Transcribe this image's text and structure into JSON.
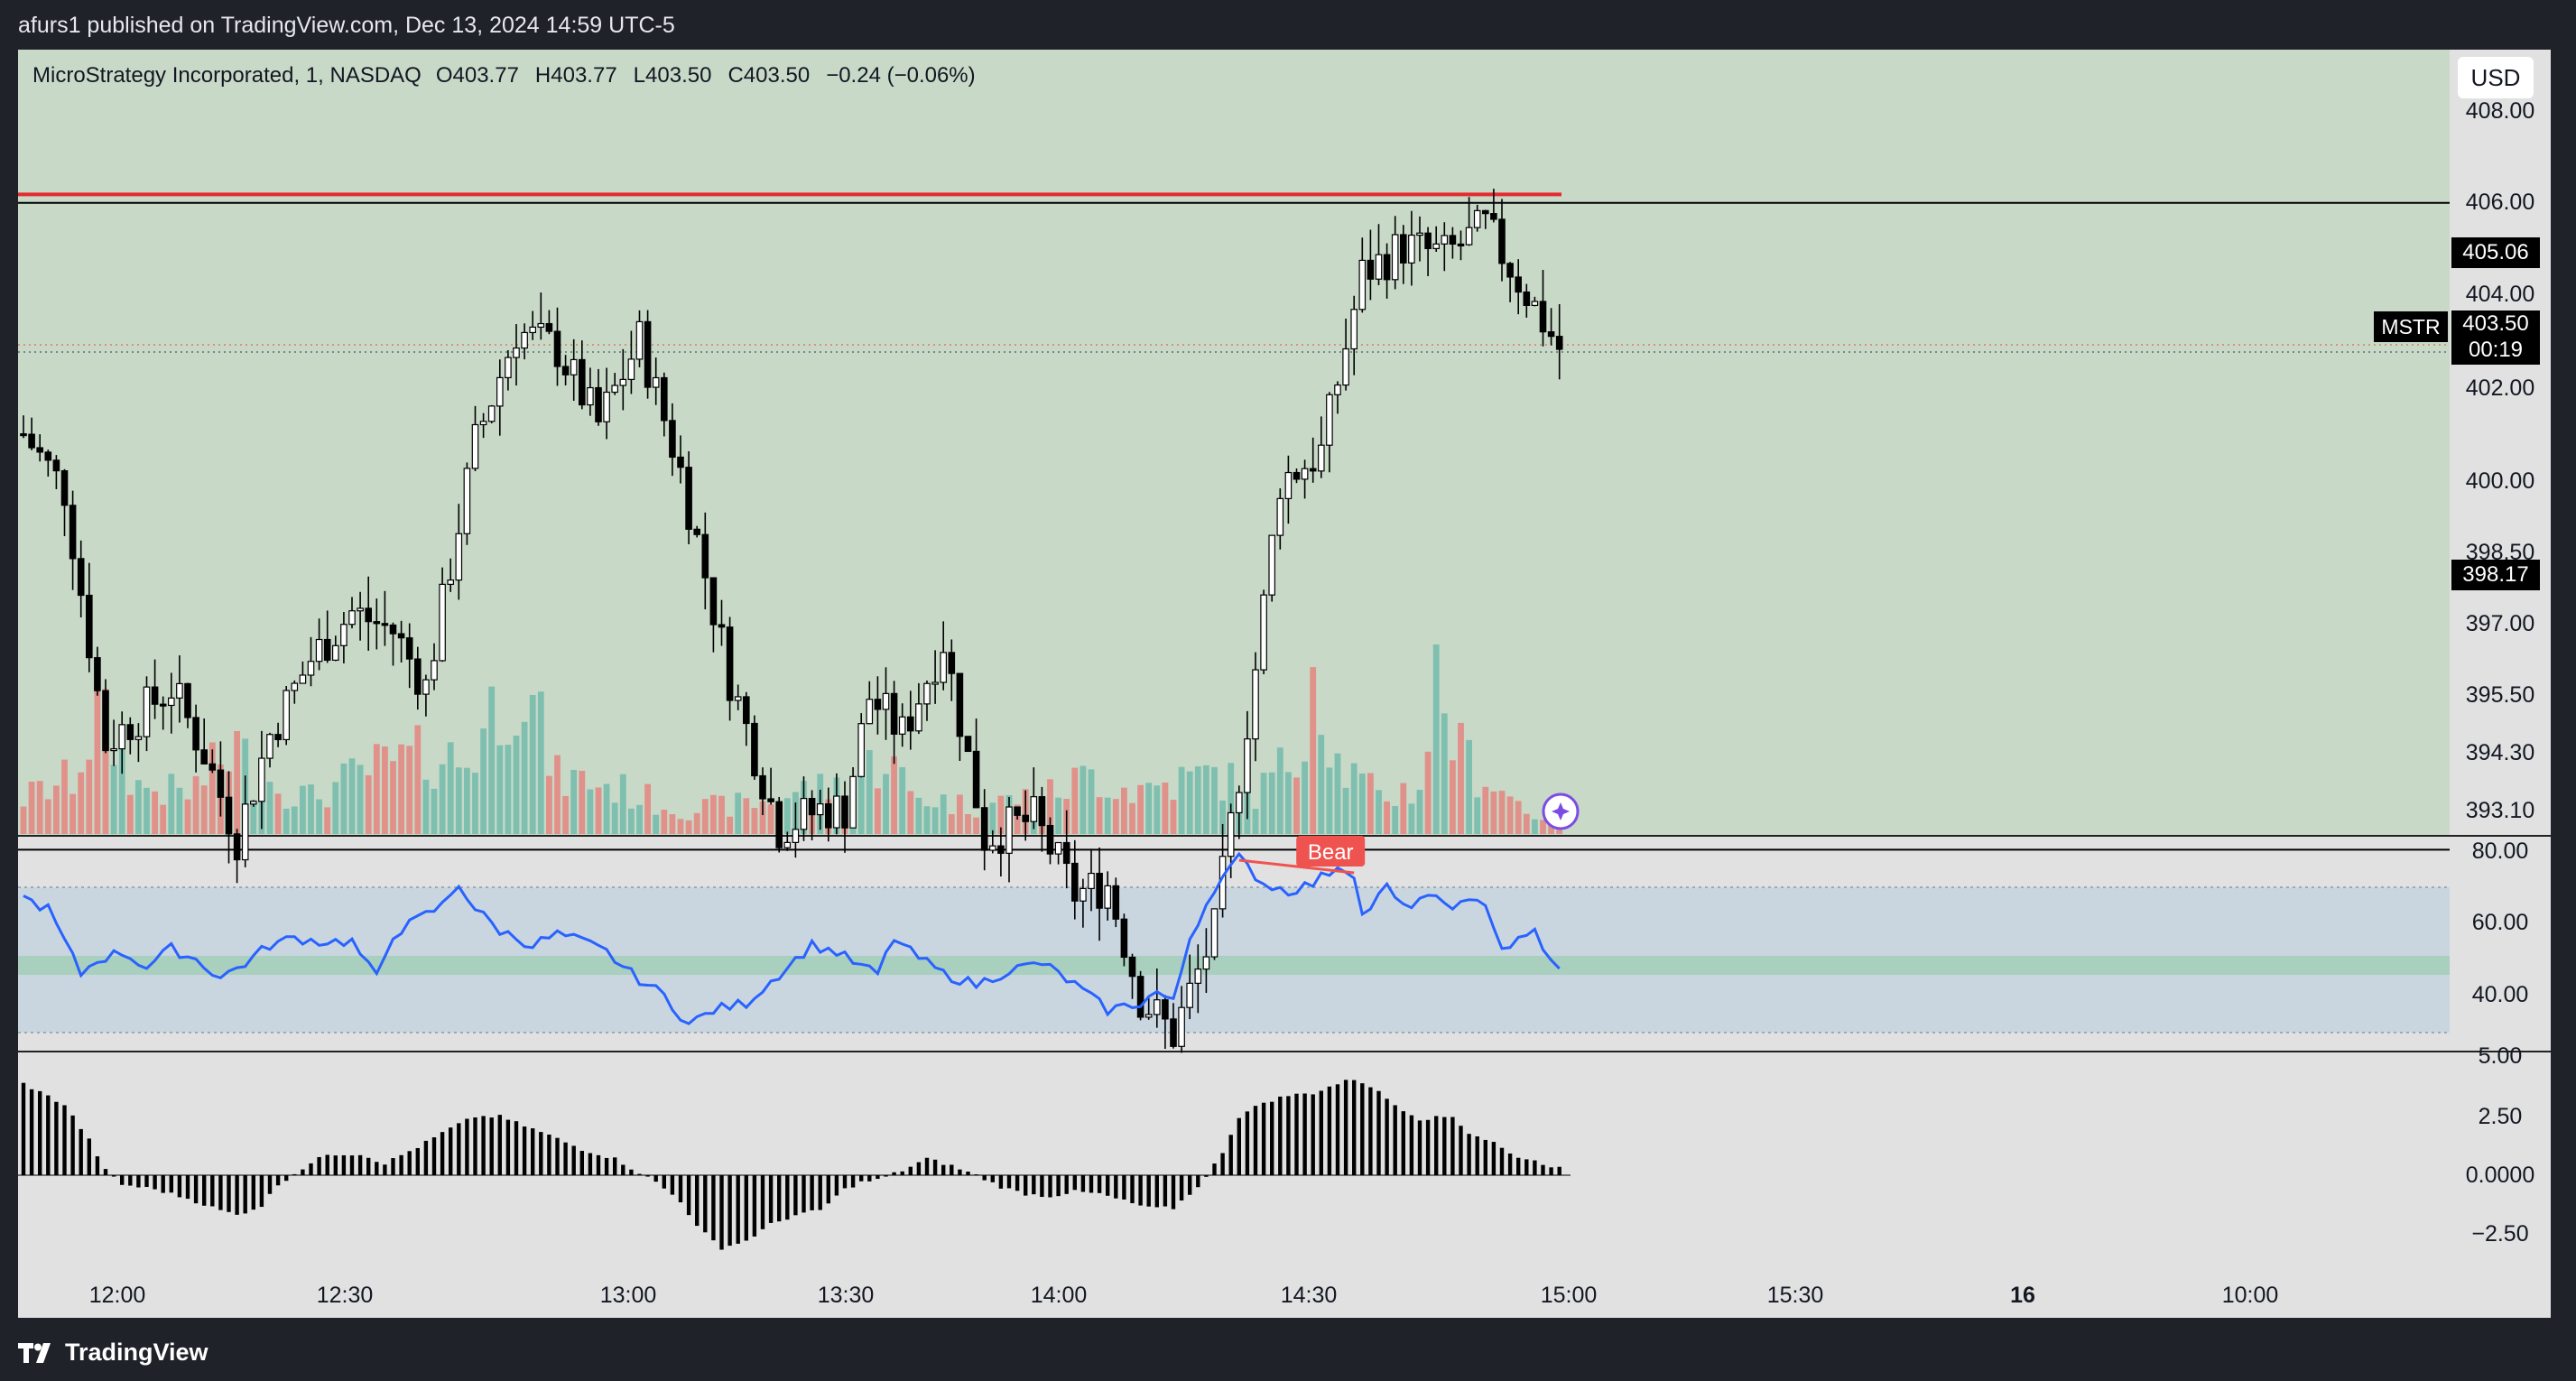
{
  "header": {
    "publisher": "afurs1 published on TradingView.com, Dec 13, 2024 14:59 UTC-5"
  },
  "legend": {
    "title": "MicroStrategy Incorporated, 1, NASDAQ",
    "o_label": "O",
    "o": "403.77",
    "h_label": "H",
    "h": "403.77",
    "l_label": "L",
    "l": "403.50",
    "c_label": "C",
    "c": "403.50",
    "change": "−0.24 (−0.06%)"
  },
  "currency": "USD",
  "price_tags": {
    "upper_level": "405.06",
    "lower_level": "398.17",
    "symbol": "MSTR",
    "last_price": "403.50",
    "countdown": "00:19"
  },
  "bear_label": "Bear",
  "footer": {
    "brand": "TradingView"
  },
  "colors": {
    "up_volume": "#7fbfb0",
    "down_volume": "#e0918a",
    "resistance": "#e5292e",
    "rsi_line": "#2962ff",
    "price_bg": "#c8d9c8",
    "ind_bg": "#e1e1e1",
    "rsi_band": "#c9d6e0",
    "candle_up": "#ffffff",
    "candle_down": "#000000"
  },
  "chart_data": [
    {
      "type": "candlestick",
      "title": "MicroStrategy Incorporated, 1, NASDAQ",
      "x_tick_labels": [
        "12:00",
        "12:30",
        "13:00",
        "13:30",
        "14:00",
        "14:30",
        "15:00",
        "15:30",
        "16",
        "10:00"
      ],
      "y_tick_labels": [
        "408.00",
        "406.00",
        "404.00",
        "402.00",
        "400.00",
        "398.50",
        "397.00",
        "395.50",
        "394.30",
        "393.10"
      ],
      "horizontal_levels": [
        405.06,
        398.17
      ],
      "resistance_level": 405.15,
      "anchors": [
        [
          0,
          402.6
        ],
        [
          5,
          402.0
        ],
        [
          10,
          399.3
        ],
        [
          14,
          399.6
        ],
        [
          18,
          399.9
        ],
        [
          22,
          399.2
        ],
        [
          26,
          398.3
        ],
        [
          30,
          399.4
        ],
        [
          35,
          400.2
        ],
        [
          40,
          400.7
        ],
        [
          45,
          400.5
        ],
        [
          49,
          399.9
        ],
        [
          55,
          402.5
        ],
        [
          60,
          403.7
        ],
        [
          65,
          403.5
        ],
        [
          70,
          402.7
        ],
        [
          75,
          403.6
        ],
        [
          80,
          402.2
        ],
        [
          86,
          400.0
        ],
        [
          92,
          398.4
        ],
        [
          97,
          398.6
        ],
        [
          100,
          398.6
        ],
        [
          103,
          399.8
        ],
        [
          107,
          399.4
        ],
        [
          112,
          400.4
        ],
        [
          117,
          398.3
        ],
        [
          123,
          398.5
        ],
        [
          128,
          397.7
        ],
        [
          132,
          397.8
        ],
        [
          136,
          396.6
        ],
        [
          140,
          396.2
        ],
        [
          145,
          397.3
        ],
        [
          150,
          400.1
        ],
        [
          153,
          402.1
        ],
        [
          158,
          402.4
        ],
        [
          163,
          404.3
        ],
        [
          168,
          404.6
        ],
        [
          173,
          404.5
        ],
        [
          178,
          404.8
        ],
        [
          183,
          404.1
        ],
        [
          187,
          403.5
        ]
      ],
      "volume_anchors": [
        [
          0,
          0.9
        ],
        [
          6,
          1.4
        ],
        [
          9,
          3.0
        ],
        [
          14,
          1.2
        ],
        [
          20,
          1.0
        ],
        [
          26,
          2.2
        ],
        [
          28,
          1.5
        ],
        [
          35,
          0.9
        ],
        [
          42,
          1.6
        ],
        [
          50,
          2.0
        ],
        [
          54,
          1.8
        ],
        [
          60,
          4.3
        ],
        [
          65,
          1.4
        ],
        [
          70,
          1.3
        ],
        [
          80,
          0.6
        ],
        [
          90,
          0.8
        ],
        [
          95,
          1.1
        ],
        [
          100,
          1.2
        ],
        [
          105,
          2.0
        ],
        [
          108,
          1.0
        ],
        [
          115,
          0.7
        ],
        [
          125,
          1.0
        ],
        [
          130,
          1.5
        ],
        [
          135,
          1.1
        ],
        [
          140,
          1.3
        ],
        [
          145,
          1.5
        ],
        [
          150,
          1.0
        ],
        [
          155,
          2.0
        ],
        [
          157,
          4.6
        ],
        [
          160,
          1.8
        ],
        [
          165,
          0.9
        ],
        [
          170,
          1.2
        ],
        [
          172,
          3.9
        ],
        [
          175,
          2.0
        ],
        [
          180,
          1.1
        ],
        [
          184,
          0.5
        ]
      ],
      "last_close": 403.5
    },
    {
      "type": "line",
      "title": "RSI",
      "y_tick_labels": [
        "80.00",
        "60.00",
        "40.00"
      ],
      "upper_band": 70,
      "lower_band": 30,
      "middle": 50,
      "anchors": [
        [
          0,
          67
        ],
        [
          3,
          64
        ],
        [
          5,
          55
        ],
        [
          7,
          46
        ],
        [
          9,
          50
        ],
        [
          12,
          52
        ],
        [
          15,
          48
        ],
        [
          18,
          53
        ],
        [
          21,
          50
        ],
        [
          24,
          45
        ],
        [
          27,
          49
        ],
        [
          30,
          54
        ],
        [
          33,
          56
        ],
        [
          36,
          55
        ],
        [
          40,
          55
        ],
        [
          42,
          48
        ],
        [
          43,
          45
        ],
        [
          45,
          57
        ],
        [
          48,
          61
        ],
        [
          51,
          65
        ],
        [
          53,
          71
        ],
        [
          55,
          64
        ],
        [
          58,
          58
        ],
        [
          62,
          54
        ],
        [
          65,
          57
        ],
        [
          68,
          55
        ],
        [
          71,
          52
        ],
        [
          74,
          46
        ],
        [
          78,
          40
        ],
        [
          81,
          32
        ],
        [
          84,
          36
        ],
        [
          88,
          38
        ],
        [
          92,
          46
        ],
        [
          96,
          54
        ],
        [
          99,
          52
        ],
        [
          102,
          48
        ],
        [
          104,
          46
        ],
        [
          106,
          56
        ],
        [
          108,
          52
        ],
        [
          112,
          46
        ],
        [
          116,
          43
        ],
        [
          120,
          47
        ],
        [
          124,
          49
        ],
        [
          128,
          43
        ],
        [
          132,
          36
        ],
        [
          136,
          38
        ],
        [
          138,
          41
        ],
        [
          140,
          38
        ],
        [
          142,
          56
        ],
        [
          145,
          70
        ],
        [
          148,
          78
        ],
        [
          151,
          71
        ],
        [
          154,
          69
        ],
        [
          157,
          71
        ],
        [
          160,
          76
        ],
        [
          162,
          74
        ],
        [
          163,
          62
        ],
        [
          166,
          70
        ],
        [
          168,
          64
        ],
        [
          170,
          67
        ],
        [
          175,
          65
        ],
        [
          178,
          66
        ],
        [
          180,
          53
        ],
        [
          183,
          56
        ],
        [
          184,
          58
        ],
        [
          186,
          49
        ],
        [
          187,
          47
        ]
      ],
      "divergence": {
        "from": 148,
        "to": 162,
        "label": "Bear"
      }
    },
    {
      "type": "bar",
      "title": "MACD histogram",
      "y_tick_labels": [
        "5.00",
        "2.50",
        "0.0000",
        "−2.50"
      ],
      "anchors": [
        [
          0,
          3.9
        ],
        [
          5,
          3.0
        ],
        [
          8,
          1.5
        ],
        [
          10,
          0.2
        ],
        [
          12,
          -0.4
        ],
        [
          16,
          -0.6
        ],
        [
          20,
          -1.0
        ],
        [
          24,
          -1.5
        ],
        [
          26,
          -1.7
        ],
        [
          29,
          -1.3
        ],
        [
          31,
          -0.4
        ],
        [
          34,
          0.3
        ],
        [
          37,
          0.9
        ],
        [
          41,
          0.9
        ],
        [
          44,
          0.5
        ],
        [
          48,
          1.2
        ],
        [
          52,
          2.0
        ],
        [
          55,
          2.5
        ],
        [
          58,
          2.5
        ],
        [
          61,
          2.1
        ],
        [
          64,
          1.7
        ],
        [
          68,
          1.1
        ],
        [
          72,
          0.7
        ],
        [
          75,
          0.1
        ],
        [
          77,
          -0.3
        ],
        [
          80,
          -1.1
        ],
        [
          82,
          -2.2
        ],
        [
          85,
          -3.1
        ],
        [
          88,
          -2.8
        ],
        [
          91,
          -2.1
        ],
        [
          94,
          -1.7
        ],
        [
          97,
          -1.5
        ],
        [
          100,
          -0.6
        ],
        [
          102,
          -0.3
        ],
        [
          104,
          -0.2
        ],
        [
          107,
          0.2
        ],
        [
          110,
          0.7
        ],
        [
          113,
          0.4
        ],
        [
          116,
          0.0
        ],
        [
          119,
          -0.5
        ],
        [
          122,
          -0.8
        ],
        [
          125,
          -0.9
        ],
        [
          128,
          -0.7
        ],
        [
          131,
          -0.8
        ],
        [
          134,
          -1.1
        ],
        [
          137,
          -1.4
        ],
        [
          140,
          -1.4
        ],
        [
          142,
          -0.8
        ],
        [
          144,
          -0.1
        ],
        [
          146,
          1.0
        ],
        [
          148,
          2.5
        ],
        [
          151,
          3.1
        ],
        [
          154,
          3.4
        ],
        [
          157,
          3.5
        ],
        [
          160,
          3.9
        ],
        [
          162,
          4.1
        ],
        [
          164,
          3.8
        ],
        [
          167,
          3.0
        ],
        [
          170,
          2.4
        ],
        [
          174,
          2.5
        ],
        [
          176,
          1.8
        ],
        [
          179,
          1.4
        ],
        [
          181,
          0.9
        ],
        [
          184,
          0.6
        ],
        [
          187,
          0.3
        ]
      ]
    }
  ]
}
